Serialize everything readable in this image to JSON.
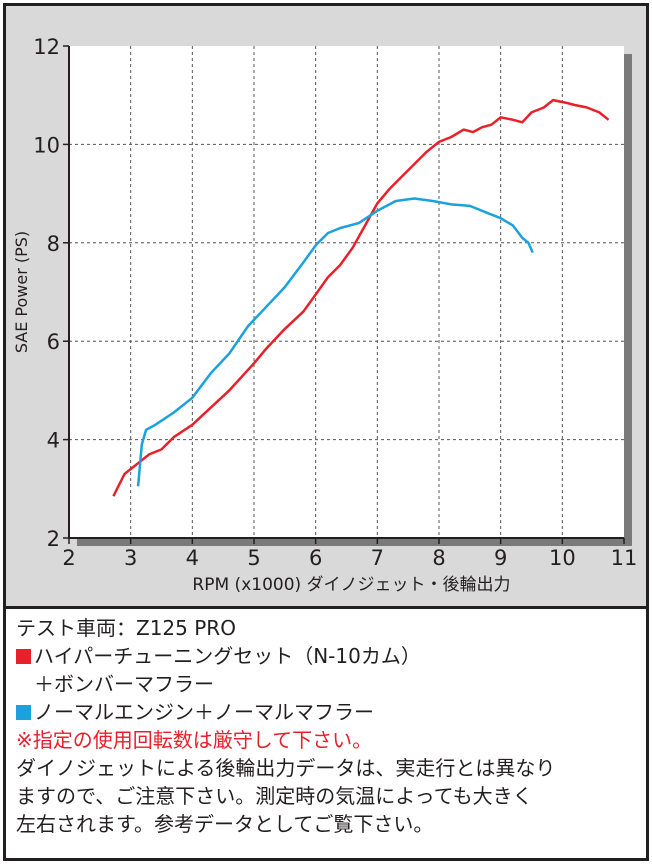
{
  "chart_data": {
    "type": "line",
    "xlabel": "RPM (x1000) ダイノジェット・後輪出力",
    "ylabel": "SAE Power (PS)",
    "xlim": [
      2,
      11
    ],
    "ylim": [
      2,
      12
    ],
    "x_ticks": [
      2,
      3,
      4,
      5,
      6,
      7,
      8,
      9,
      10,
      11
    ],
    "y_ticks": [
      2,
      4,
      6,
      8,
      10,
      12
    ],
    "grid": true,
    "series": [
      {
        "color": "#e8202a",
        "points": [
          [
            2.72,
            2.85
          ],
          [
            2.9,
            3.3
          ],
          [
            3.1,
            3.5
          ],
          [
            3.3,
            3.7
          ],
          [
            3.5,
            3.8
          ],
          [
            3.7,
            4.05
          ],
          [
            4.0,
            4.3
          ],
          [
            4.3,
            4.65
          ],
          [
            4.6,
            5.0
          ],
          [
            5.0,
            5.55
          ],
          [
            5.2,
            5.85
          ],
          [
            5.5,
            6.25
          ],
          [
            5.8,
            6.6
          ],
          [
            6.0,
            6.95
          ],
          [
            6.2,
            7.3
          ],
          [
            6.4,
            7.55
          ],
          [
            6.6,
            7.9
          ],
          [
            6.8,
            8.35
          ],
          [
            7.0,
            8.8
          ],
          [
            7.2,
            9.1
          ],
          [
            7.4,
            9.35
          ],
          [
            7.6,
            9.6
          ],
          [
            7.8,
            9.85
          ],
          [
            8.0,
            10.05
          ],
          [
            8.2,
            10.15
          ],
          [
            8.4,
            10.3
          ],
          [
            8.55,
            10.25
          ],
          [
            8.7,
            10.35
          ],
          [
            8.85,
            10.4
          ],
          [
            9.0,
            10.55
          ],
          [
            9.2,
            10.5
          ],
          [
            9.35,
            10.45
          ],
          [
            9.5,
            10.65
          ],
          [
            9.7,
            10.75
          ],
          [
            9.85,
            10.9
          ],
          [
            10.05,
            10.85
          ],
          [
            10.2,
            10.8
          ],
          [
            10.4,
            10.75
          ],
          [
            10.6,
            10.65
          ],
          [
            10.75,
            10.5
          ]
        ]
      },
      {
        "color": "#1ba1dd",
        "points": [
          [
            3.12,
            3.05
          ],
          [
            3.18,
            3.9
          ],
          [
            3.25,
            4.2
          ],
          [
            3.4,
            4.3
          ],
          [
            3.7,
            4.55
          ],
          [
            4.0,
            4.85
          ],
          [
            4.3,
            5.35
          ],
          [
            4.6,
            5.75
          ],
          [
            4.9,
            6.3
          ],
          [
            5.2,
            6.7
          ],
          [
            5.5,
            7.1
          ],
          [
            5.8,
            7.6
          ],
          [
            6.0,
            7.95
          ],
          [
            6.2,
            8.2
          ],
          [
            6.4,
            8.3
          ],
          [
            6.7,
            8.4
          ],
          [
            7.0,
            8.65
          ],
          [
            7.3,
            8.85
          ],
          [
            7.6,
            8.9
          ],
          [
            7.9,
            8.85
          ],
          [
            8.2,
            8.78
          ],
          [
            8.5,
            8.75
          ],
          [
            8.8,
            8.6
          ],
          [
            9.0,
            8.5
          ],
          [
            9.2,
            8.35
          ],
          [
            9.35,
            8.1
          ],
          [
            9.45,
            8.0
          ],
          [
            9.52,
            7.8
          ]
        ]
      }
    ]
  },
  "info": {
    "line1": "テスト車両：Z125 PRO",
    "legend_red": "ハイパーチューニングセット（N-10カム）",
    "legend_red_cont": "＋ボンバーマフラー",
    "legend_blue": "ノーマルエンジン＋ノーマルマフラー",
    "warning": "※指定の使用回転数は厳守して下さい。",
    "note1": "ダイノジェットによる後輪出力データは、実走行とは異なり",
    "note2": "ますので、ご注意下さい。測定時の気温によっても大きく",
    "note3": "左右されます。参考データとしてご覧下さい。",
    "red_color": "#e8202a",
    "blue_color": "#1ba1dd"
  }
}
